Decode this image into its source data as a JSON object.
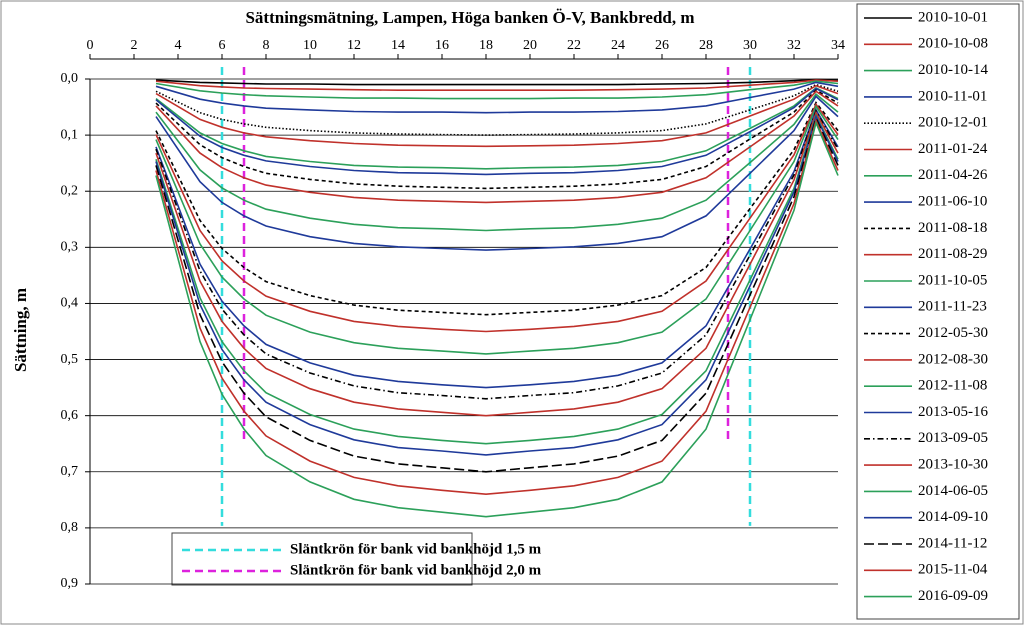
{
  "chart_data": {
    "type": "line",
    "title": "Sättningsmätning, Lampen, Höga banken Ö-V, Bankbredd, m",
    "y_label": "Sättning, m",
    "x": [
      3,
      5,
      6,
      7,
      8,
      10,
      12,
      14,
      16,
      18,
      20,
      22,
      24,
      26,
      28,
      30,
      32,
      33,
      34
    ],
    "xlim": [
      0,
      34
    ],
    "xticks": [
      0,
      2,
      4,
      6,
      8,
      10,
      12,
      14,
      16,
      18,
      20,
      22,
      24,
      26,
      28,
      30,
      32,
      34
    ],
    "xaxis_position": "top",
    "ylim": [
      0,
      0.9
    ],
    "y_inverted": true,
    "yticks": [
      {
        "value": 0,
        "label": "0,0"
      },
      {
        "value": 0.1,
        "label": "0,1"
      },
      {
        "value": 0.2,
        "label": "0,2"
      },
      {
        "value": 0.3,
        "label": "0,3"
      },
      {
        "value": 0.4,
        "label": "0,4"
      },
      {
        "value": 0.5,
        "label": "0,5"
      },
      {
        "value": 0.6,
        "label": "0,6"
      },
      {
        "value": 0.7,
        "label": "0,7"
      },
      {
        "value": 0.8,
        "label": "0,8"
      },
      {
        "value": 0.9,
        "label": "0,9"
      }
    ],
    "grid": true,
    "legend": "right",
    "series": [
      {
        "name": "2010-10-01",
        "color": "#000000",
        "dash": "solid",
        "values": [
          0.002,
          0.006,
          0.007,
          0.008,
          0.009,
          0.009,
          0.01,
          0.01,
          0.01,
          0.01,
          0.01,
          0.01,
          0.01,
          0.009,
          0.008,
          0.006,
          0.003,
          0.001,
          0.002
        ]
      },
      {
        "name": "2010-10-08",
        "color": "#c0312b",
        "dash": "solid",
        "values": [
          0.004,
          0.012,
          0.014,
          0.016,
          0.017,
          0.018,
          0.019,
          0.02,
          0.02,
          0.02,
          0.02,
          0.02,
          0.019,
          0.018,
          0.016,
          0.011,
          0.006,
          0.002,
          0.004
        ]
      },
      {
        "name": "2010-10-14",
        "color": "#2ca05a",
        "dash": "solid",
        "values": [
          0.008,
          0.021,
          0.025,
          0.028,
          0.03,
          0.032,
          0.034,
          0.034,
          0.035,
          0.035,
          0.035,
          0.034,
          0.034,
          0.032,
          0.028,
          0.019,
          0.011,
          0.004,
          0.008
        ]
      },
      {
        "name": "2010-11-01",
        "color": "#1f3a9a",
        "dash": "solid",
        "values": [
          0.013,
          0.036,
          0.043,
          0.048,
          0.052,
          0.055,
          0.058,
          0.059,
          0.059,
          0.06,
          0.059,
          0.059,
          0.058,
          0.055,
          0.048,
          0.033,
          0.018,
          0.006,
          0.013
        ]
      },
      {
        "name": "2010-12-01",
        "color": "#000000",
        "dash": "dotted",
        "values": [
          0.022,
          0.06,
          0.072,
          0.08,
          0.086,
          0.092,
          0.096,
          0.098,
          0.099,
          0.1,
          0.099,
          0.098,
          0.096,
          0.092,
          0.08,
          0.055,
          0.03,
          0.01,
          0.022
        ]
      },
      {
        "name": "2011-01-24",
        "color": "#c0312b",
        "dash": "solid",
        "values": [
          0.026,
          0.072,
          0.086,
          0.096,
          0.103,
          0.11,
          0.115,
          0.118,
          0.119,
          0.12,
          0.119,
          0.118,
          0.115,
          0.11,
          0.096,
          0.066,
          0.036,
          0.012,
          0.026
        ]
      },
      {
        "name": "2011-04-26",
        "color": "#2ca05a",
        "dash": "solid",
        "values": [
          0.035,
          0.096,
          0.115,
          0.128,
          0.138,
          0.147,
          0.154,
          0.157,
          0.158,
          0.16,
          0.158,
          0.157,
          0.154,
          0.147,
          0.128,
          0.088,
          0.048,
          0.016,
          0.035
        ]
      },
      {
        "name": "2011-06-10",
        "color": "#1f3a9a",
        "dash": "solid",
        "values": [
          0.037,
          0.102,
          0.122,
          0.136,
          0.146,
          0.156,
          0.163,
          0.167,
          0.168,
          0.17,
          0.168,
          0.167,
          0.163,
          0.156,
          0.136,
          0.094,
          0.051,
          0.017,
          0.037
        ]
      },
      {
        "name": "2011-08-18",
        "color": "#000000",
        "dash": "dashed",
        "values": [
          0.043,
          0.117,
          0.14,
          0.156,
          0.168,
          0.179,
          0.187,
          0.191,
          0.193,
          0.195,
          0.193,
          0.191,
          0.187,
          0.179,
          0.156,
          0.107,
          0.059,
          0.02,
          0.043
        ]
      },
      {
        "name": "2011-08-29",
        "color": "#c0312b",
        "dash": "solid",
        "values": [
          0.048,
          0.132,
          0.158,
          0.176,
          0.189,
          0.202,
          0.211,
          0.216,
          0.218,
          0.22,
          0.218,
          0.216,
          0.211,
          0.202,
          0.176,
          0.121,
          0.066,
          0.022,
          0.048
        ]
      },
      {
        "name": "2011-10-05",
        "color": "#2ca05a",
        "dash": "solid",
        "values": [
          0.059,
          0.162,
          0.194,
          0.216,
          0.232,
          0.248,
          0.259,
          0.265,
          0.267,
          0.27,
          0.267,
          0.265,
          0.259,
          0.248,
          0.216,
          0.149,
          0.081,
          0.027,
          0.059
        ]
      },
      {
        "name": "2011-11-23",
        "color": "#1f3a9a",
        "dash": "solid",
        "values": [
          0.067,
          0.183,
          0.22,
          0.244,
          0.262,
          0.281,
          0.293,
          0.299,
          0.302,
          0.305,
          0.302,
          0.299,
          0.293,
          0.281,
          0.244,
          0.168,
          0.092,
          0.031,
          0.067
        ]
      },
      {
        "name": "2012-05-30",
        "color": "#000000",
        "dash": "dashed",
        "values": [
          0.092,
          0.252,
          0.302,
          0.336,
          0.361,
          0.386,
          0.403,
          0.412,
          0.416,
          0.42,
          0.416,
          0.412,
          0.403,
          0.386,
          0.336,
          0.231,
          0.126,
          0.042,
          0.092
        ]
      },
      {
        "name": "2012-08-30",
        "color": "#c0312b",
        "dash": "solid",
        "values": [
          0.099,
          0.27,
          0.324,
          0.36,
          0.387,
          0.414,
          0.432,
          0.441,
          0.446,
          0.45,
          0.446,
          0.441,
          0.432,
          0.414,
          0.36,
          0.248,
          0.135,
          0.045,
          0.099
        ]
      },
      {
        "name": "2012-11-08",
        "color": "#2ca05a",
        "dash": "solid",
        "values": [
          0.108,
          0.294,
          0.353,
          0.392,
          0.421,
          0.451,
          0.47,
          0.48,
          0.485,
          0.49,
          0.485,
          0.48,
          0.47,
          0.451,
          0.392,
          0.27,
          0.147,
          0.049,
          0.108
        ]
      },
      {
        "name": "2013-05-16",
        "color": "#1f3a9a",
        "dash": "solid",
        "values": [
          0.121,
          0.33,
          0.396,
          0.44,
          0.473,
          0.506,
          0.528,
          0.539,
          0.545,
          0.55,
          0.545,
          0.539,
          0.528,
          0.506,
          0.44,
          0.303,
          0.165,
          0.055,
          0.121
        ]
      },
      {
        "name": "2013-09-05",
        "color": "#000000",
        "dash": "dashdot",
        "values": [
          0.125,
          0.342,
          0.41,
          0.456,
          0.49,
          0.524,
          0.547,
          0.559,
          0.564,
          0.57,
          0.564,
          0.559,
          0.547,
          0.524,
          0.456,
          0.314,
          0.171,
          0.057,
          0.125
        ]
      },
      {
        "name": "2013-10-30",
        "color": "#c0312b",
        "dash": "solid",
        "values": [
          0.132,
          0.36,
          0.432,
          0.48,
          0.516,
          0.552,
          0.576,
          0.588,
          0.594,
          0.6,
          0.594,
          0.588,
          0.576,
          0.552,
          0.48,
          0.33,
          0.18,
          0.06,
          0.132
        ]
      },
      {
        "name": "2014-06-05",
        "color": "#2ca05a",
        "dash": "solid",
        "values": [
          0.143,
          0.39,
          0.468,
          0.52,
          0.559,
          0.598,
          0.624,
          0.637,
          0.644,
          0.65,
          0.644,
          0.637,
          0.624,
          0.598,
          0.52,
          0.358,
          0.195,
          0.065,
          0.143
        ]
      },
      {
        "name": "2014-09-10",
        "color": "#1f3a9a",
        "dash": "solid",
        "values": [
          0.147,
          0.402,
          0.482,
          0.536,
          0.576,
          0.616,
          0.643,
          0.657,
          0.663,
          0.67,
          0.663,
          0.657,
          0.643,
          0.616,
          0.536,
          0.369,
          0.201,
          0.067,
          0.147
        ]
      },
      {
        "name": "2014-11-12",
        "color": "#000000",
        "dash": "longdash",
        "values": [
          0.154,
          0.42,
          0.504,
          0.56,
          0.602,
          0.644,
          0.672,
          0.686,
          0.693,
          0.7,
          0.693,
          0.686,
          0.672,
          0.644,
          0.56,
          0.385,
          0.21,
          0.07,
          0.154
        ]
      },
      {
        "name": "2015-11-04",
        "color": "#c0312b",
        "dash": "solid",
        "values": [
          0.163,
          0.444,
          0.533,
          0.592,
          0.636,
          0.681,
          0.71,
          0.725,
          0.733,
          0.74,
          0.733,
          0.725,
          0.71,
          0.681,
          0.592,
          0.407,
          0.222,
          0.074,
          0.163
        ]
      },
      {
        "name": "2016-09-09",
        "color": "#2ca05a",
        "dash": "solid",
        "values": [
          0.172,
          0.468,
          0.562,
          0.624,
          0.671,
          0.718,
          0.749,
          0.764,
          0.772,
          0.78,
          0.772,
          0.764,
          0.749,
          0.718,
          0.624,
          0.429,
          0.234,
          0.078,
          0.172
        ]
      }
    ],
    "reference_lines": [
      {
        "name": "Släntkrön för bank vid bankhöjd 1,5 m",
        "color": "#33dddd",
        "x": [
          6,
          30
        ],
        "ylim": [
          0,
          0.8
        ]
      },
      {
        "name": "Släntkrön för bank vid bankhöjd 2,0 m",
        "color": "#dd22dd",
        "x": [
          7,
          29
        ],
        "ylim": [
          0,
          0.65
        ]
      }
    ]
  }
}
